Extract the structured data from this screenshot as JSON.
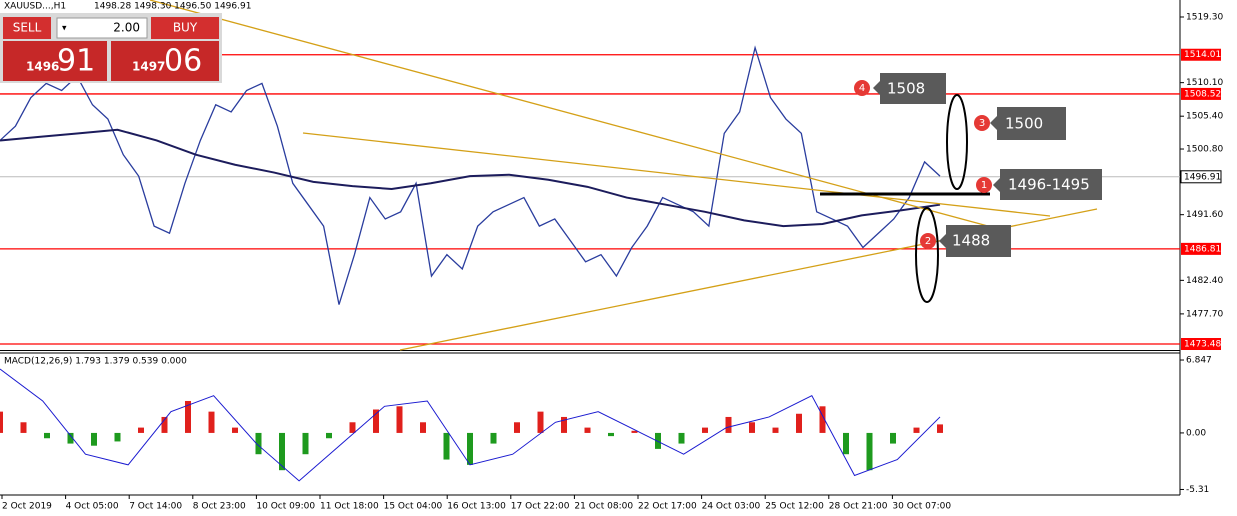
{
  "header": {
    "symbol": "XAUUSD...,H1",
    "ohlc": "1498.28 1498.30 1496.50 1496.91"
  },
  "trade_panel": {
    "sell": "SELL",
    "buy": "BUY",
    "lot": "2.00",
    "bid_big": "1496",
    "bid_small": "91",
    "ask_big": "1497",
    "ask_small": "06"
  },
  "price_chart": {
    "ylim": [
      1472.64,
      1521.68
    ],
    "yticks": [
      {
        "value": 1519.3,
        "label": "1519.30"
      },
      {
        "value": 1510.1,
        "label": "1510.10"
      },
      {
        "value": 1505.4,
        "label": "1505.40"
      },
      {
        "value": 1500.8,
        "label": "1500.80"
      },
      {
        "value": 1491.6,
        "label": "1491.60"
      },
      {
        "value": 1482.4,
        "label": "1482.40"
      },
      {
        "value": 1477.7,
        "label": "1477.70"
      }
    ],
    "levels": [
      1514.01,
      1508.52,
      1486.81,
      1473.48
    ],
    "level_color": "#ff0000",
    "current": 1496.91,
    "price": {
      "color": "#2a3d9e",
      "values": [
        1502,
        1504,
        1508,
        1510,
        1509,
        1511,
        1507,
        1505,
        1500,
        1497,
        1490,
        1489,
        1496,
        1502,
        1507,
        1506,
        1509,
        1510,
        1504,
        1496,
        1493,
        1490,
        1479,
        1486,
        1494,
        1491,
        1492,
        1496,
        1483,
        1486,
        1484,
        1490,
        1492,
        1493,
        1494,
        1490,
        1491,
        1488,
        1485,
        1486,
        1483,
        1487,
        1490,
        1494,
        1493,
        1492,
        1490,
        1503,
        1506,
        1515,
        1508,
        1505,
        1503,
        1492,
        1491,
        1490,
        1487,
        1489,
        1491,
        1494,
        1499,
        1497
      ]
    },
    "ma": {
      "color": "#1c1c5c",
      "values": [
        1502,
        1502.5,
        1503,
        1503.5,
        1502,
        1500,
        1498.6,
        1497.5,
        1496.2,
        1495.6,
        1495.2,
        1496,
        1497,
        1497.2,
        1496.5,
        1495.5,
        1494,
        1493,
        1492,
        1490.8,
        1490,
        1490.3,
        1491.5,
        1492.2,
        1493
      ]
    },
    "annotations": [
      {
        "number": "1",
        "text": "1496-1495"
      },
      {
        "number": "2",
        "text": "1488"
      },
      {
        "number": "3",
        "text": "1500"
      },
      {
        "number": "4",
        "text": "1508"
      }
    ]
  },
  "macd_panel": {
    "label": "MACD(12,26,9) 1.793 1.379 0.539 0.000",
    "ylim": [
      -5.83,
      7.6
    ],
    "yticks": [
      6.847,
      {
        "value": 0,
        "label": "0.00"
      },
      -5.31
    ],
    "histogram": [
      2,
      1,
      -0.5,
      -1,
      -1.2,
      -0.8,
      0.5,
      1.5,
      3,
      2,
      0.5,
      -2,
      -3.5,
      -2,
      -0.5,
      1,
      2.2,
      2.5,
      1,
      -2.5,
      -3,
      -1,
      1,
      2,
      1.5,
      0.5,
      -0.3,
      0.2,
      -1.5,
      -1,
      0.5,
      1.5,
      1,
      0.5,
      1.8,
      2.5,
      -2,
      -3.5,
      -1,
      0.5,
      0.8
    ],
    "main": [
      6,
      3,
      -2,
      -3,
      2,
      3.5,
      -1,
      -4.5,
      -1,
      2.5,
      3,
      -3,
      -2,
      1,
      2,
      0,
      -2,
      0.5,
      1.5,
      3.5,
      -4,
      -2.5,
      1.5
    ],
    "positive_color": "#e0201c",
    "negative_color": "#1e9a1e",
    "line_color": "#1a1ad0"
  },
  "time_labels": [
    "2 Oct 2019",
    "4 Oct 05:00",
    "7 Oct 14:00",
    "8 Oct 23:00",
    "10 Oct 09:00",
    "11 Oct 18:00",
    "15 Oct 04:00",
    "16 Oct 13:00",
    "17 Oct 22:00",
    "21 Oct 08:00",
    "22 Oct 17:00",
    "24 Oct 03:00",
    "25 Oct 12:00",
    "28 Oct 21:00",
    "30 Oct 07:00"
  ]
}
